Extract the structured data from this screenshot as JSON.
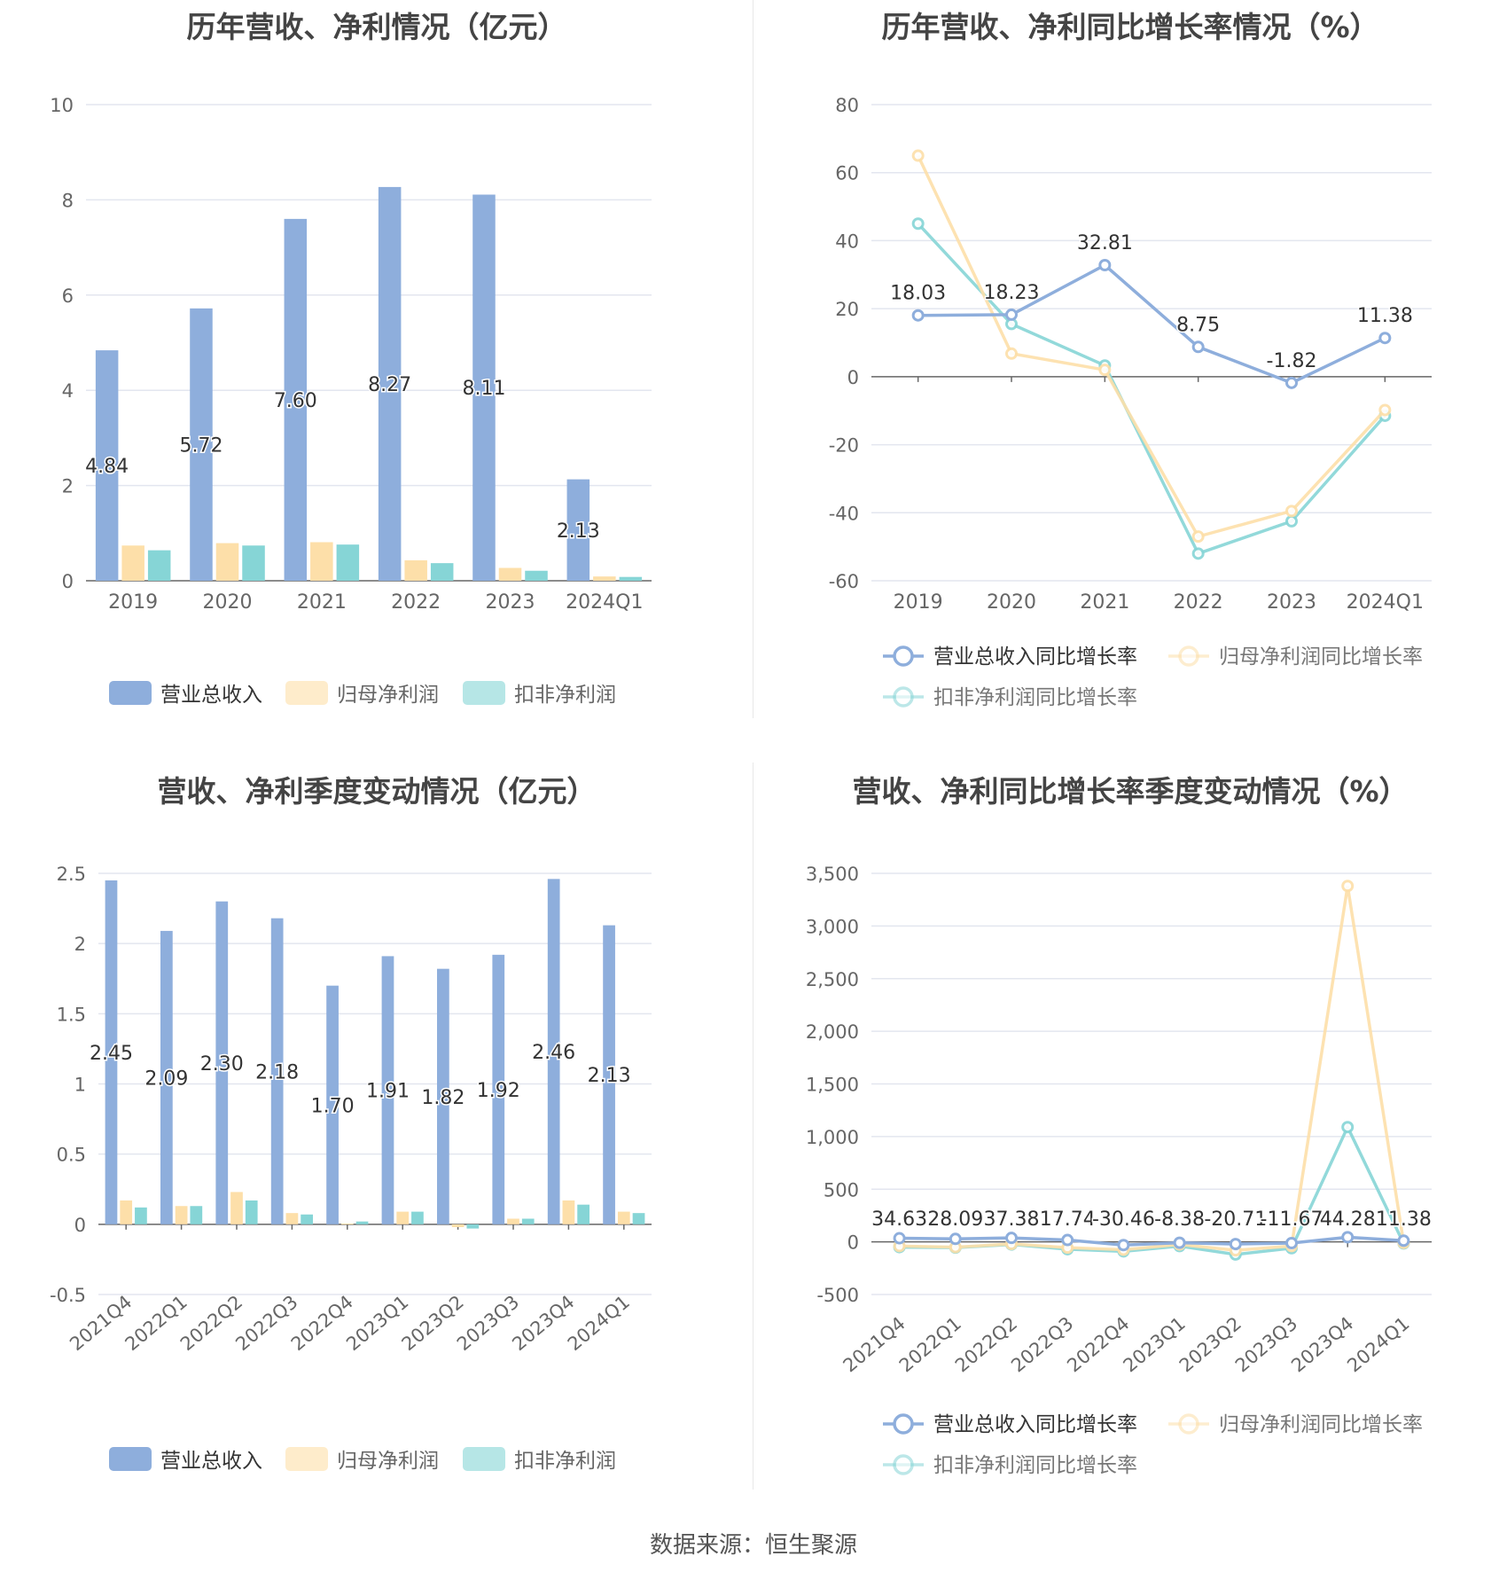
{
  "source": "数据来源：恒生聚源",
  "colors": {
    "revenue": "#8eaedc",
    "net_profit": "#fddfa9",
    "deducted_profit": "#86d5d6",
    "grid": "#e3e6ef",
    "axis_text": "#666666",
    "label_text": "#333333"
  },
  "chart_data": [
    {
      "id": "annual_bar",
      "type": "bar",
      "title": "历年营收、净利情况（亿元）",
      "categories": [
        "2019",
        "2020",
        "2021",
        "2022",
        "2023",
        "2024Q1"
      ],
      "series": [
        {
          "name": "营业总收入",
          "values": [
            4.84,
            5.72,
            7.6,
            8.27,
            8.11,
            2.13
          ],
          "labels": [
            "4.84",
            "5.72",
            "7.60",
            "8.27",
            "8.11",
            "2.13"
          ]
        },
        {
          "name": "归母净利润",
          "values": [
            0.74,
            0.79,
            0.81,
            0.43,
            0.27,
            0.09
          ]
        },
        {
          "name": "扣非净利润",
          "values": [
            0.64,
            0.74,
            0.76,
            0.37,
            0.21,
            0.08
          ]
        }
      ],
      "yticks": [
        "0",
        "2",
        "4",
        "6",
        "8",
        "10"
      ],
      "ylim": [
        0,
        10
      ],
      "legend": "bottom",
      "grid": true
    },
    {
      "id": "annual_growth",
      "type": "line",
      "title": "历年营收、净利同比增长率情况（%）",
      "categories": [
        "2019",
        "2020",
        "2021",
        "2022",
        "2023",
        "2024Q1"
      ],
      "series": [
        {
          "name": "营业总收入同比增长率",
          "values": [
            18.03,
            18.23,
            32.81,
            8.75,
            -1.82,
            11.38
          ],
          "labels": [
            "18.03",
            "18.23",
            "32.81",
            "8.75",
            "-1.82",
            "11.38"
          ]
        },
        {
          "name": "归母净利润同比增长率",
          "values": [
            65,
            6.8,
            2,
            -47,
            -39.5,
            -9.8
          ]
        },
        {
          "name": "扣非净利润同比增长率",
          "values": [
            45,
            15.5,
            3.3,
            -52,
            -42.5,
            -11.5
          ]
        }
      ],
      "yticks": [
        "-60",
        "-40",
        "-20",
        "0",
        "20",
        "40",
        "60",
        "80"
      ],
      "ylim": [
        -60,
        80
      ],
      "legend": "bottom",
      "grid": true
    },
    {
      "id": "quarterly_bar",
      "type": "bar",
      "title": "营收、净利季度变动情况（亿元）",
      "categories": [
        "2021Q4",
        "2022Q1",
        "2022Q2",
        "2022Q3",
        "2022Q4",
        "2023Q1",
        "2023Q2",
        "2023Q3",
        "2023Q4",
        "2024Q1"
      ],
      "series": [
        {
          "name": "营业总收入",
          "values": [
            2.45,
            2.09,
            2.3,
            2.18,
            1.7,
            1.91,
            1.82,
            1.92,
            2.46,
            2.13
          ],
          "labels": [
            "2.45",
            "2.09",
            "2.30",
            "2.18",
            "1.70",
            "1.91",
            "1.82",
            "1.92",
            "2.46",
            "2.13"
          ]
        },
        {
          "name": "归母净利润",
          "values": [
            0.17,
            0.13,
            0.23,
            0.08,
            0.005,
            0.09,
            -0.02,
            0.04,
            0.17,
            0.09
          ]
        },
        {
          "name": "扣非净利润",
          "values": [
            0.12,
            0.13,
            0.17,
            0.07,
            0.02,
            0.09,
            -0.03,
            0.04,
            0.14,
            0.08
          ]
        }
      ],
      "yticks": [
        "-0.5",
        "0",
        "0.5",
        "1",
        "1.5",
        "2",
        "2.5"
      ],
      "ylim": [
        -0.5,
        2.5
      ],
      "legend": "bottom",
      "grid": true
    },
    {
      "id": "quarterly_growth",
      "type": "line",
      "title": "营收、净利同比增长率季度变动情况（%）",
      "categories": [
        "2021Q4",
        "2022Q1",
        "2022Q2",
        "2022Q3",
        "2022Q4",
        "2023Q1",
        "2023Q2",
        "2023Q3",
        "2023Q4",
        "2024Q1"
      ],
      "series": [
        {
          "name": "营业总收入同比增长率",
          "values": [
            34.63,
            28.09,
            37.38,
            17.74,
            -30.46,
            -8.38,
            -20.71,
            -11.67,
            44.28,
            11.38
          ],
          "labels": [
            "34.63",
            "28.09",
            "37.38",
            "17.74",
            "-30.46",
            "-8.38",
            "-20.71",
            "-11.67",
            "44.28",
            "11.38"
          ]
        },
        {
          "name": "归母净利润同比增长率",
          "values": [
            -40,
            -50,
            -20,
            -55,
            -75,
            -25,
            -80,
            -40,
            3380,
            -10
          ]
        },
        {
          "name": "扣非净利润同比增长率",
          "values": [
            -50,
            -55,
            -25,
            -70,
            -90,
            -40,
            -120,
            -60,
            1090,
            -15
          ]
        }
      ],
      "yticks": [
        "-500",
        "0",
        "500",
        "1,000",
        "1,500",
        "2,000",
        "2,500",
        "3,000",
        "3,500"
      ],
      "ylim": [
        -500,
        3500
      ],
      "legend": "bottom",
      "grid": true
    }
  ]
}
